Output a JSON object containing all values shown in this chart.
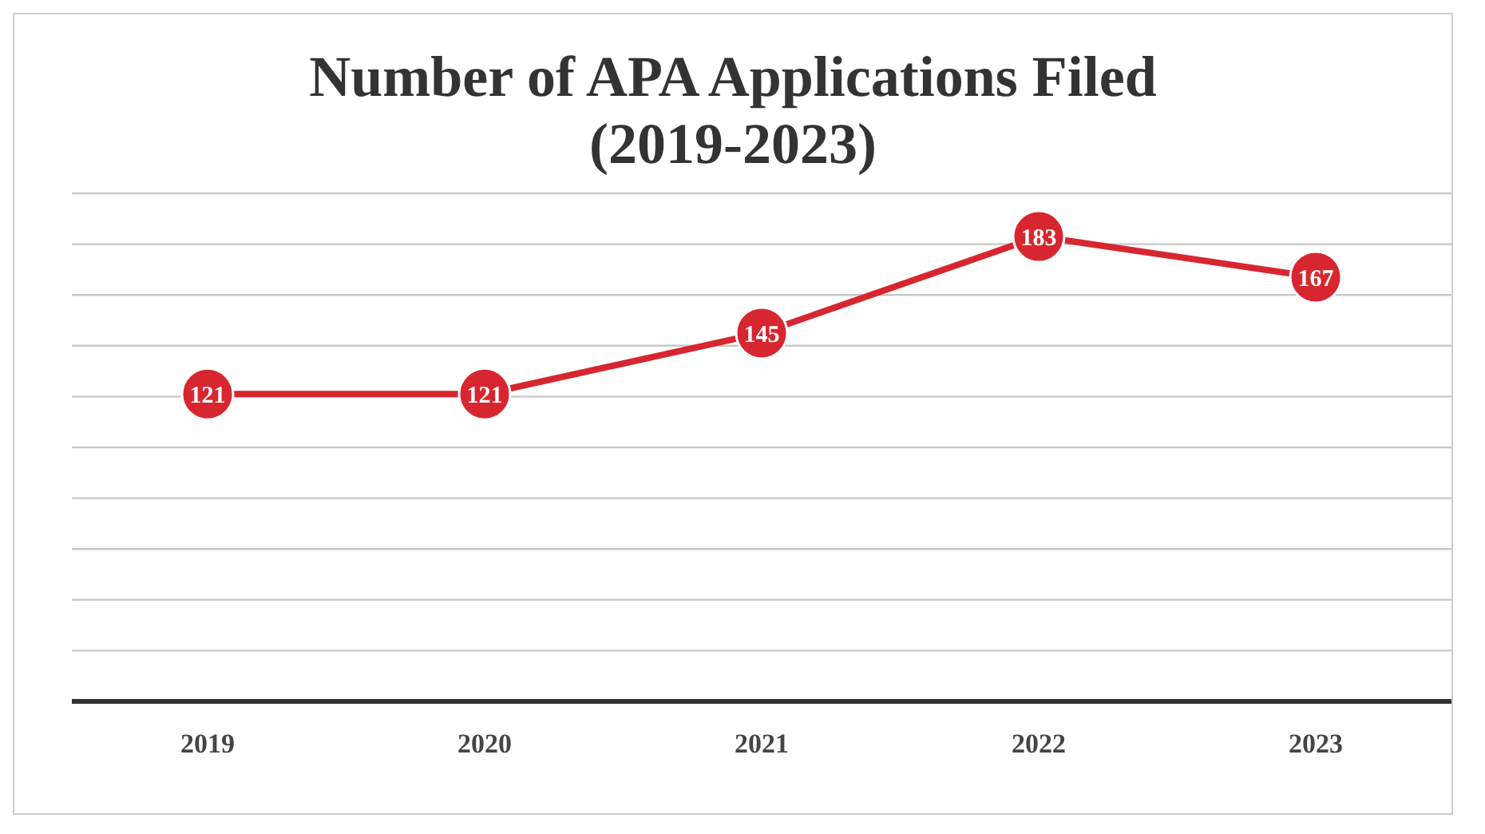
{
  "chart_data": {
    "type": "line",
    "title": "Number of APA Applications Filed\n(2019-2023)",
    "categories": [
      "2019",
      "2020",
      "2021",
      "2022",
      "2023"
    ],
    "series": [
      {
        "color": "#d7262f",
        "values": [
          121,
          121,
          145,
          183,
          167
        ]
      }
    ],
    "data_labels": true,
    "marker": "circle",
    "line_style": "solid",
    "grid": "y",
    "tick_labels": "x",
    "legend": false,
    "ylim": [
      0,
      200
    ]
  }
}
